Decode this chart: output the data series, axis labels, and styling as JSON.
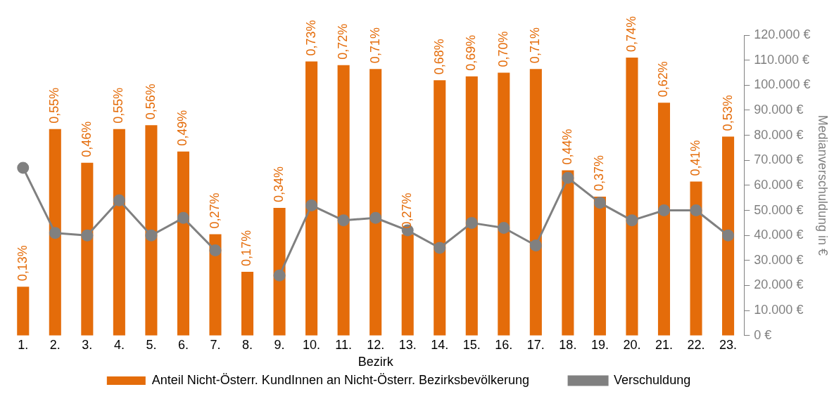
{
  "chart_data": {
    "type": "bar",
    "xlabel": "Bezirk",
    "y2label": "Medianverschuldung in €",
    "categories": [
      "1.",
      "2.",
      "3.",
      "4.",
      "5.",
      "6.",
      "7.",
      "8.",
      "9.",
      "10.",
      "11.",
      "12.",
      "13.",
      "14.",
      "15.",
      "16.",
      "17.",
      "18.",
      "19.",
      "20.",
      "21.",
      "22.",
      "23."
    ],
    "series": [
      {
        "name": "Anteil Nicht-Österr. KundInnen an Nicht-Österr. Bezirksbevölkerung",
        "color": "#e46c0a",
        "values": [
          0.13,
          0.55,
          0.46,
          0.55,
          0.56,
          0.49,
          0.27,
          0.17,
          0.34,
          0.73,
          0.72,
          0.71,
          0.27,
          0.68,
          0.69,
          0.7,
          0.71,
          0.44,
          0.37,
          0.74,
          0.62,
          0.41,
          0.53
        ],
        "value_labels": [
          "0,13%",
          "0,55%",
          "0,46%",
          "0,55%",
          "0,56%",
          "0,49%",
          "0,27%",
          "0,17%",
          "0,34%",
          "0,73%",
          "0,72%",
          "0,71%",
          "0,27%",
          "0,68%",
          "0,69%",
          "0,70%",
          "0,71%",
          "0,44%",
          "0,37%",
          "0,74%",
          "0,62%",
          "0,41%",
          "0,53%"
        ]
      },
      {
        "name": "Verschuldung",
        "type": "line",
        "axis": "y2",
        "color": "#808080",
        "marker": "circle",
        "values": [
          67000,
          41000,
          40000,
          54000,
          40000,
          47000,
          34000,
          null,
          24000,
          52000,
          46000,
          47000,
          42000,
          35000,
          45000,
          43000,
          36000,
          63000,
          53000,
          46000,
          50000,
          50000,
          40000
        ]
      }
    ],
    "ylim": [
      0,
      0.8
    ],
    "y2lim": [
      0,
      120000
    ],
    "y2ticks": [
      {
        "value": 0,
        "label": "0 €"
      },
      {
        "value": 10000,
        "label": "10.000 €"
      },
      {
        "value": 20000,
        "label": "20.000 €"
      },
      {
        "value": 30000,
        "label": "30.000 €"
      },
      {
        "value": 40000,
        "label": "40.000 €"
      },
      {
        "value": 50000,
        "label": "50.000 €"
      },
      {
        "value": 60000,
        "label": "60.000 €"
      },
      {
        "value": 70000,
        "label": "70.000 €"
      },
      {
        "value": 80000,
        "label": "80.000 €"
      },
      {
        "value": 90000,
        "label": "90.000 €"
      },
      {
        "value": 100000,
        "label": "100.000 €"
      },
      {
        "value": 110000,
        "label": "110.000 €"
      },
      {
        "value": 120000,
        "label": "120.000 €"
      }
    ],
    "grid": false,
    "legend": "bottom"
  }
}
